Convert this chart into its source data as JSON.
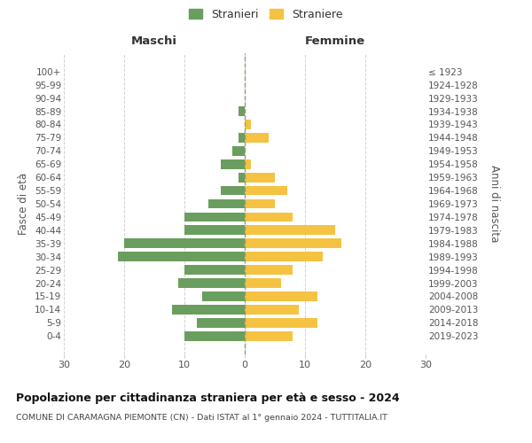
{
  "age_groups": [
    "100+",
    "95-99",
    "90-94",
    "85-89",
    "80-84",
    "75-79",
    "70-74",
    "65-69",
    "60-64",
    "55-59",
    "50-54",
    "45-49",
    "40-44",
    "35-39",
    "30-34",
    "25-29",
    "20-24",
    "15-19",
    "10-14",
    "5-9",
    "0-4"
  ],
  "birth_years": [
    "≤ 1923",
    "1924-1928",
    "1929-1933",
    "1934-1938",
    "1939-1943",
    "1944-1948",
    "1949-1953",
    "1954-1958",
    "1959-1963",
    "1964-1968",
    "1969-1973",
    "1974-1978",
    "1979-1983",
    "1984-1988",
    "1989-1993",
    "1994-1998",
    "1999-2003",
    "2004-2008",
    "2009-2013",
    "2014-2018",
    "2019-2023"
  ],
  "males": [
    0,
    0,
    0,
    1,
    0,
    1,
    2,
    4,
    1,
    4,
    6,
    10,
    10,
    20,
    21,
    10,
    11,
    7,
    12,
    8,
    10
  ],
  "females": [
    0,
    0,
    0,
    0,
    1,
    4,
    0,
    1,
    5,
    7,
    5,
    8,
    15,
    16,
    13,
    8,
    6,
    12,
    9,
    12,
    8
  ],
  "male_color": "#6a9e5e",
  "female_color": "#f5c242",
  "grid_color": "#cccccc",
  "bg_color": "#ffffff",
  "text_color": "#555555",
  "dashed_line_color": "#999977",
  "title": "Popolazione per cittadinanza straniera per età e sesso - 2024",
  "subtitle": "COMUNE DI CARAMAGNA PIEMONTE (CN) - Dati ISTAT al 1° gennaio 2024 - TUTTITALIA.IT",
  "xlabel_left": "Maschi",
  "xlabel_right": "Femmine",
  "ylabel_left": "Fasce di età",
  "ylabel_right": "Anni di nascita",
  "xlim": 30,
  "legend_labels": [
    "Stranieri",
    "Straniere"
  ]
}
